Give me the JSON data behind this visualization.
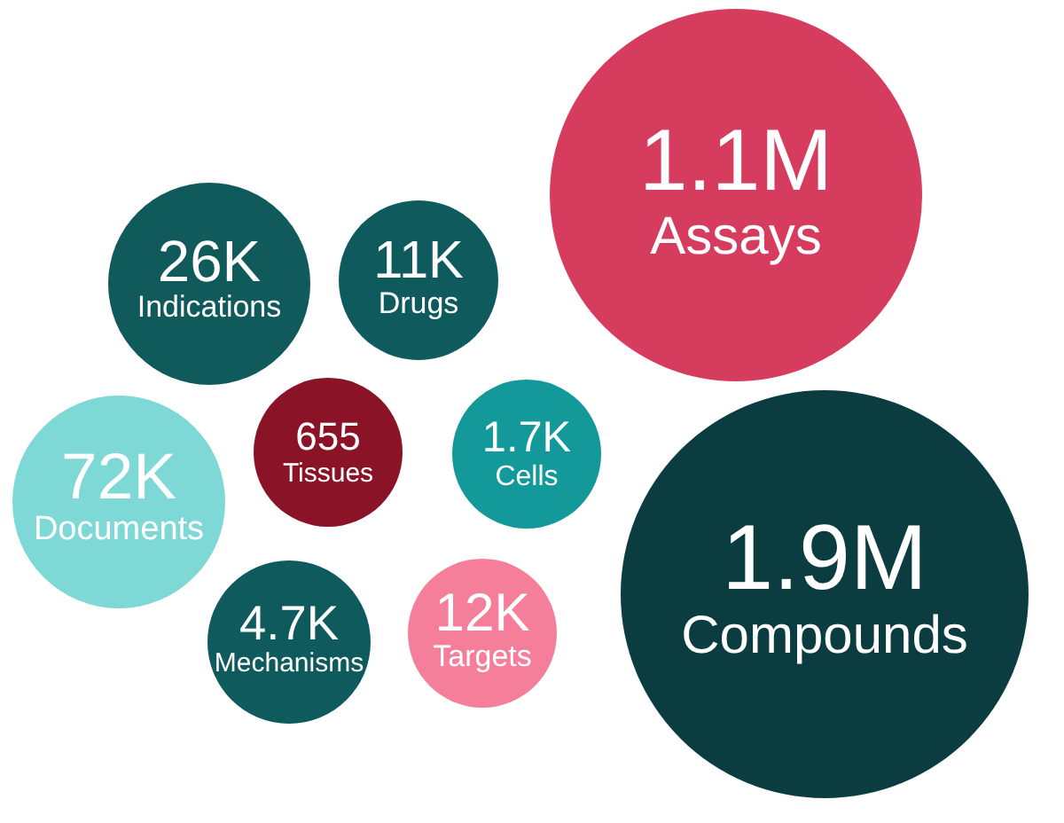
{
  "chart_data": {
    "type": "other",
    "categories": [
      "Assays",
      "Indications",
      "Drugs",
      "Tissues",
      "Cells",
      "Documents",
      "Compounds",
      "Mechanisms",
      "Targets"
    ],
    "values": [
      1100000,
      26000,
      11000,
      655,
      1700,
      72000,
      1900000,
      4700,
      12000
    ],
    "value_labels": [
      "1.1M",
      "26K",
      "11K",
      "655",
      "1.7K",
      "72K",
      "1.9M",
      "4.7K",
      "12K"
    ],
    "colors": [
      "#d63c5e",
      "#105a5b",
      "#0e5a5c",
      "#8b1328",
      "#13999a",
      "#7dd8d6",
      "#0b3d40",
      "#0e5a5c",
      "#f57f9a"
    ]
  }
}
